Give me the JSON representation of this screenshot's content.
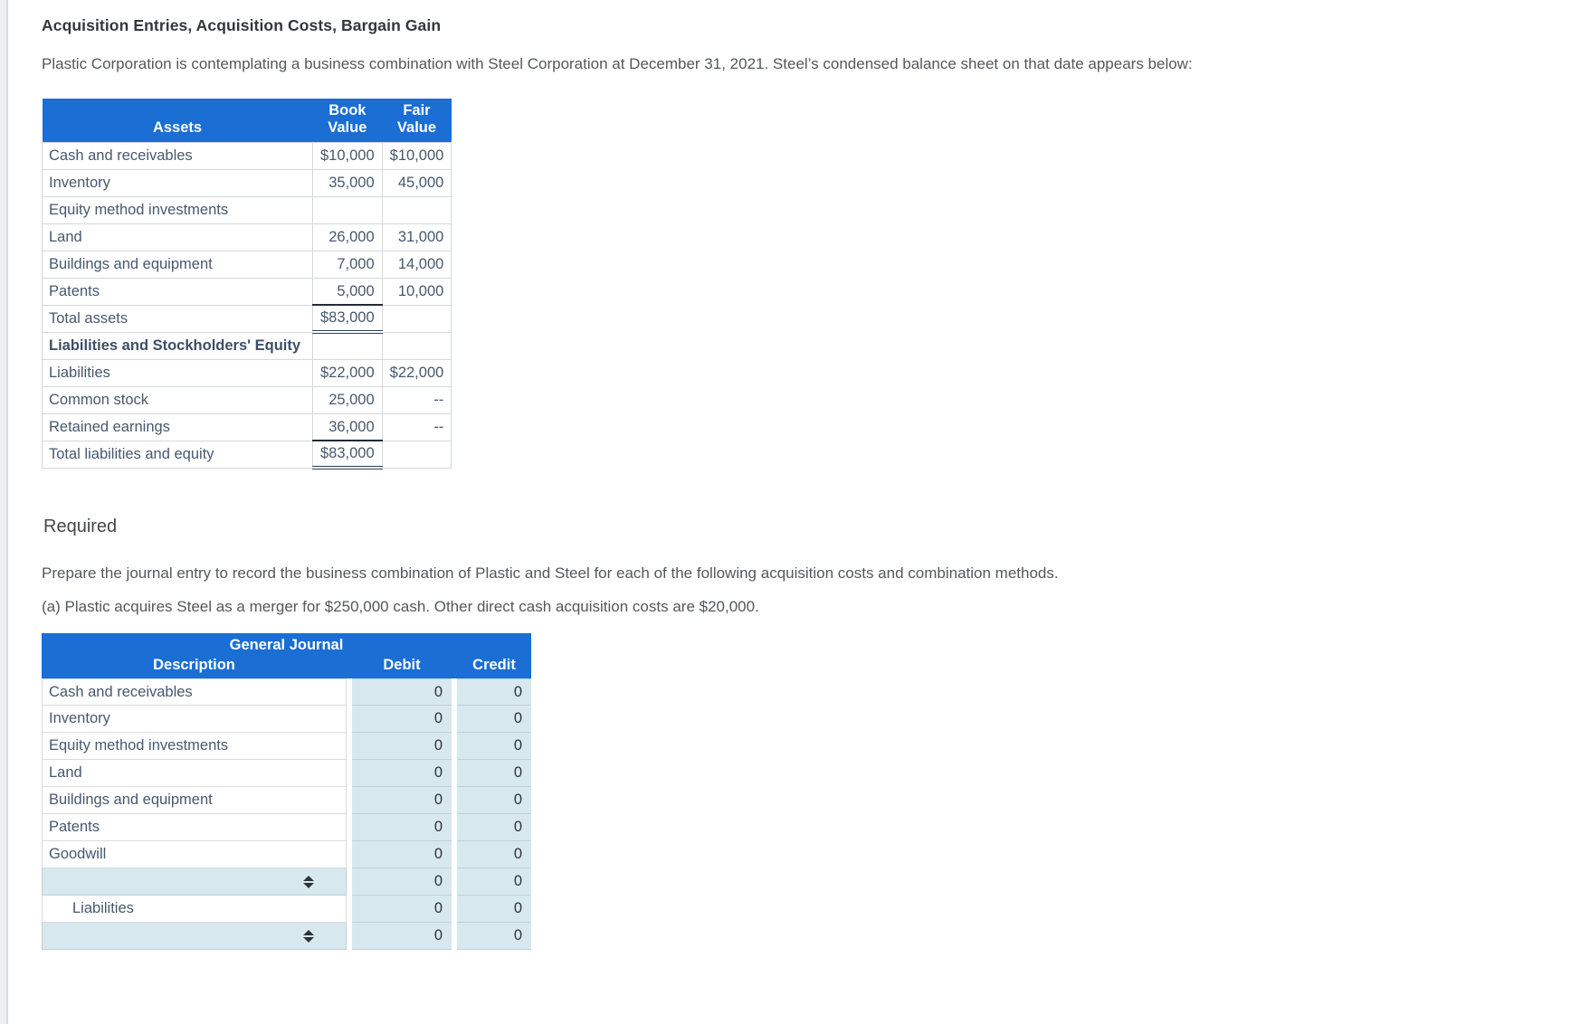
{
  "page": {
    "title": "Acquisition Entries, Acquisition Costs, Bargain Gain",
    "intro": "Plastic Corporation is contemplating a business combination with Steel Corporation at December 31, 2021. Steel’s condensed balance sheet on that date appears below:",
    "required_label": "Required",
    "required_text": "Prepare the journal entry to record the business combination of Plastic and Steel for each of the following acquisition costs and combination methods.",
    "part_a": "(a) Plastic acquires Steel as a merger for $250,000 cash. Other direct cash acquisition costs are $20,000."
  },
  "colors": {
    "header_blue": "#1a6ed4",
    "input_cell_blue": "#d7e8ef",
    "table_text": "#47586f"
  },
  "balance_sheet": {
    "headers": {
      "label": "Assets",
      "book": "Book Value",
      "fair": "Fair Value"
    },
    "rows": [
      {
        "label": "Cash and receivables",
        "book": "$10,000",
        "fair": "$10,000"
      },
      {
        "label": "Inventory",
        "book": "35,000",
        "fair": "45,000"
      },
      {
        "label": "Equity method investments",
        "book": "",
        "fair": ""
      },
      {
        "label": "Land",
        "book": "26,000",
        "fair": "31,000"
      },
      {
        "label": "Buildings and equipment",
        "book": "7,000",
        "fair": "14,000"
      },
      {
        "label": "Patents",
        "book": "5,000",
        "fair": "10,000",
        "book_underline": "single"
      },
      {
        "label": "Total assets",
        "book": "$83,000",
        "fair": "",
        "book_underline": "double"
      },
      {
        "label": "Liabilities and Stockholders' Equity",
        "book": "",
        "fair": "",
        "bold": true
      },
      {
        "label": "Liabilities",
        "book": "$22,000",
        "fair": "$22,000"
      },
      {
        "label": "Common stock",
        "book": "25,000",
        "fair": "--"
      },
      {
        "label": "Retained earnings",
        "book": "36,000",
        "fair": "--",
        "book_underline": "single"
      },
      {
        "label": "Total liabilities and equity",
        "book": "$83,000",
        "fair": "",
        "book_underline": "double"
      }
    ]
  },
  "journal": {
    "title": "General Journal",
    "headers": {
      "description": "Description",
      "debit": "Debit",
      "credit": "Credit"
    },
    "rows": [
      {
        "type": "text",
        "label": "Cash and receivables",
        "debit": "0",
        "credit": "0"
      },
      {
        "type": "text",
        "label": "Inventory",
        "debit": "0",
        "credit": "0"
      },
      {
        "type": "text",
        "label": "Equity method investments",
        "debit": "0",
        "credit": "0"
      },
      {
        "type": "text",
        "label": "Land",
        "debit": "0",
        "credit": "0"
      },
      {
        "type": "text",
        "label": "Buildings and equipment",
        "debit": "0",
        "credit": "0"
      },
      {
        "type": "text",
        "label": "Patents",
        "debit": "0",
        "credit": "0"
      },
      {
        "type": "text",
        "label": "Goodwill",
        "debit": "0",
        "credit": "0"
      },
      {
        "type": "select",
        "label": "",
        "debit": "0",
        "credit": "0"
      },
      {
        "type": "text",
        "label": "Liabilities",
        "indent": true,
        "debit": "0",
        "credit": "0"
      },
      {
        "type": "select",
        "label": "",
        "debit": "0",
        "credit": "0"
      }
    ]
  }
}
